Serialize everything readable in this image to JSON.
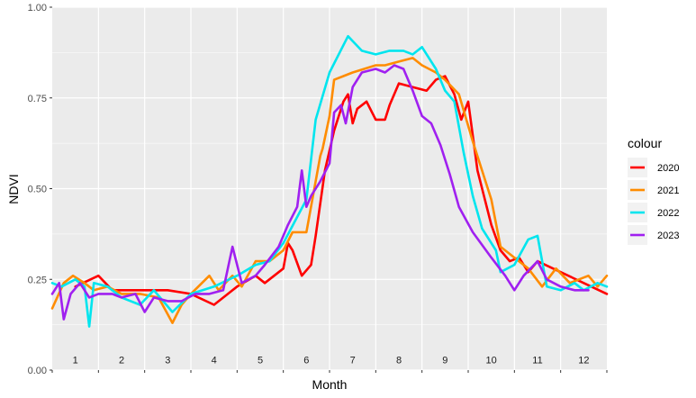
{
  "chart_data": {
    "type": "line",
    "xlabel": "Month",
    "ylabel": "NDVI",
    "x_range": [
      0.5,
      12.5
    ],
    "ylim": [
      0.0,
      1.0
    ],
    "y_ticks": [
      "0.00",
      "0.25",
      "0.50",
      "0.75",
      "1.00"
    ],
    "month_labels": [
      "1",
      "2",
      "3",
      "4",
      "5",
      "6",
      "7",
      "8",
      "9",
      "10",
      "11",
      "12"
    ],
    "grid": true,
    "legend": {
      "title": "colour",
      "position": "right"
    },
    "series": [
      {
        "name": "2020",
        "color": "#ff0000",
        "points": [
          [
            1.0,
            0.23
          ],
          [
            1.5,
            0.26
          ],
          [
            1.8,
            0.22
          ],
          [
            2.3,
            0.22
          ],
          [
            3.0,
            0.22
          ],
          [
            3.5,
            0.21
          ],
          [
            4.0,
            0.18
          ],
          [
            4.5,
            0.23
          ],
          [
            4.9,
            0.26
          ],
          [
            5.1,
            0.24
          ],
          [
            5.5,
            0.28
          ],
          [
            5.6,
            0.35
          ],
          [
            5.7,
            0.33
          ],
          [
            5.9,
            0.26
          ],
          [
            6.1,
            0.29
          ],
          [
            6.2,
            0.37
          ],
          [
            6.4,
            0.55
          ],
          [
            6.6,
            0.66
          ],
          [
            6.8,
            0.74
          ],
          [
            6.9,
            0.76
          ],
          [
            7.0,
            0.68
          ],
          [
            7.1,
            0.72
          ],
          [
            7.3,
            0.74
          ],
          [
            7.5,
            0.69
          ],
          [
            7.7,
            0.69
          ],
          [
            7.8,
            0.73
          ],
          [
            8.0,
            0.79
          ],
          [
            8.3,
            0.78
          ],
          [
            8.6,
            0.77
          ],
          [
            8.8,
            0.8
          ],
          [
            9.0,
            0.81
          ],
          [
            9.2,
            0.76
          ],
          [
            9.35,
            0.69
          ],
          [
            9.5,
            0.74
          ],
          [
            9.7,
            0.55
          ],
          [
            10.0,
            0.4
          ],
          [
            10.2,
            0.33
          ],
          [
            10.4,
            0.3
          ],
          [
            10.6,
            0.31
          ],
          [
            10.8,
            0.27
          ],
          [
            11.0,
            0.3
          ],
          [
            11.5,
            0.27
          ],
          [
            12.0,
            0.24
          ],
          [
            12.5,
            0.21
          ]
        ]
      },
      {
        "name": "2021",
        "color": "#ff8c00",
        "points": [
          [
            0.5,
            0.17
          ],
          [
            0.75,
            0.24
          ],
          [
            0.95,
            0.26
          ],
          [
            1.2,
            0.24
          ],
          [
            1.4,
            0.22
          ],
          [
            1.7,
            0.23
          ],
          [
            2.0,
            0.21
          ],
          [
            2.4,
            0.21
          ],
          [
            2.8,
            0.2
          ],
          [
            3.1,
            0.13
          ],
          [
            3.3,
            0.18
          ],
          [
            3.5,
            0.21
          ],
          [
            3.9,
            0.26
          ],
          [
            4.1,
            0.22
          ],
          [
            4.4,
            0.26
          ],
          [
            4.6,
            0.23
          ],
          [
            4.9,
            0.3
          ],
          [
            5.2,
            0.3
          ],
          [
            5.5,
            0.33
          ],
          [
            5.7,
            0.38
          ],
          [
            6.0,
            0.38
          ],
          [
            6.3,
            0.59
          ],
          [
            6.35,
            0.61
          ],
          [
            6.5,
            0.7
          ],
          [
            6.6,
            0.8
          ],
          [
            7.0,
            0.82
          ],
          [
            7.5,
            0.84
          ],
          [
            7.7,
            0.84
          ],
          [
            8.0,
            0.85
          ],
          [
            8.3,
            0.86
          ],
          [
            8.5,
            0.84
          ],
          [
            8.8,
            0.82
          ],
          [
            9.0,
            0.8
          ],
          [
            9.3,
            0.76
          ],
          [
            9.6,
            0.63
          ],
          [
            10.0,
            0.47
          ],
          [
            10.2,
            0.34
          ],
          [
            10.5,
            0.31
          ],
          [
            10.8,
            0.28
          ],
          [
            11.1,
            0.23
          ],
          [
            11.4,
            0.28
          ],
          [
            11.7,
            0.24
          ],
          [
            12.1,
            0.26
          ],
          [
            12.3,
            0.23
          ],
          [
            12.5,
            0.26
          ]
        ]
      },
      {
        "name": "2022",
        "color": "#00e5ee",
        "points": [
          [
            0.5,
            0.24
          ],
          [
            0.7,
            0.23
          ],
          [
            1.0,
            0.25
          ],
          [
            1.2,
            0.23
          ],
          [
            1.3,
            0.12
          ],
          [
            1.4,
            0.24
          ],
          [
            1.7,
            0.23
          ],
          [
            2.0,
            0.2
          ],
          [
            2.4,
            0.18
          ],
          [
            2.7,
            0.22
          ],
          [
            2.9,
            0.19
          ],
          [
            3.1,
            0.16
          ],
          [
            3.5,
            0.21
          ],
          [
            4.0,
            0.23
          ],
          [
            4.5,
            0.26
          ],
          [
            4.9,
            0.29
          ],
          [
            5.2,
            0.3
          ],
          [
            5.5,
            0.35
          ],
          [
            6.0,
            0.47
          ],
          [
            6.2,
            0.69
          ],
          [
            6.5,
            0.82
          ],
          [
            6.9,
            0.92
          ],
          [
            7.2,
            0.88
          ],
          [
            7.5,
            0.87
          ],
          [
            7.8,
            0.88
          ],
          [
            8.1,
            0.88
          ],
          [
            8.3,
            0.87
          ],
          [
            8.5,
            0.89
          ],
          [
            8.8,
            0.83
          ],
          [
            9.0,
            0.77
          ],
          [
            9.2,
            0.74
          ],
          [
            9.4,
            0.6
          ],
          [
            9.6,
            0.48
          ],
          [
            9.8,
            0.39
          ],
          [
            10.1,
            0.33
          ],
          [
            10.2,
            0.27
          ],
          [
            10.5,
            0.29
          ],
          [
            10.8,
            0.36
          ],
          [
            11.0,
            0.37
          ],
          [
            11.2,
            0.23
          ],
          [
            11.5,
            0.22
          ],
          [
            11.8,
            0.24
          ],
          [
            12.0,
            0.22
          ],
          [
            12.3,
            0.24
          ],
          [
            12.5,
            0.23
          ]
        ]
      },
      {
        "name": "2023",
        "color": "#a020f0",
        "points": [
          [
            0.5,
            0.21
          ],
          [
            0.65,
            0.24
          ],
          [
            0.75,
            0.14
          ],
          [
            0.9,
            0.21
          ],
          [
            1.1,
            0.24
          ],
          [
            1.3,
            0.2
          ],
          [
            1.5,
            0.21
          ],
          [
            1.8,
            0.21
          ],
          [
            2.0,
            0.2
          ],
          [
            2.3,
            0.21
          ],
          [
            2.5,
            0.16
          ],
          [
            2.7,
            0.2
          ],
          [
            3.0,
            0.19
          ],
          [
            3.3,
            0.19
          ],
          [
            3.6,
            0.21
          ],
          [
            3.9,
            0.21
          ],
          [
            4.2,
            0.22
          ],
          [
            4.4,
            0.34
          ],
          [
            4.6,
            0.24
          ],
          [
            4.9,
            0.26
          ],
          [
            5.1,
            0.29
          ],
          [
            5.4,
            0.34
          ],
          [
            5.6,
            0.4
          ],
          [
            5.8,
            0.45
          ],
          [
            5.9,
            0.55
          ],
          [
            6.0,
            0.45
          ],
          [
            6.1,
            0.48
          ],
          [
            6.3,
            0.52
          ],
          [
            6.5,
            0.57
          ],
          [
            6.6,
            0.71
          ],
          [
            6.75,
            0.73
          ],
          [
            6.85,
            0.68
          ],
          [
            7.0,
            0.78
          ],
          [
            7.2,
            0.82
          ],
          [
            7.5,
            0.83
          ],
          [
            7.7,
            0.82
          ],
          [
            7.9,
            0.84
          ],
          [
            8.1,
            0.83
          ],
          [
            8.3,
            0.77
          ],
          [
            8.5,
            0.7
          ],
          [
            8.7,
            0.68
          ],
          [
            8.9,
            0.62
          ],
          [
            9.1,
            0.54
          ],
          [
            9.3,
            0.45
          ],
          [
            9.6,
            0.38
          ],
          [
            10.0,
            0.31
          ],
          [
            10.3,
            0.26
          ],
          [
            10.5,
            0.22
          ],
          [
            10.7,
            0.26
          ],
          [
            11.0,
            0.3
          ],
          [
            11.2,
            0.25
          ],
          [
            11.5,
            0.23
          ],
          [
            11.8,
            0.22
          ],
          [
            12.1,
            0.22
          ]
        ]
      }
    ]
  }
}
